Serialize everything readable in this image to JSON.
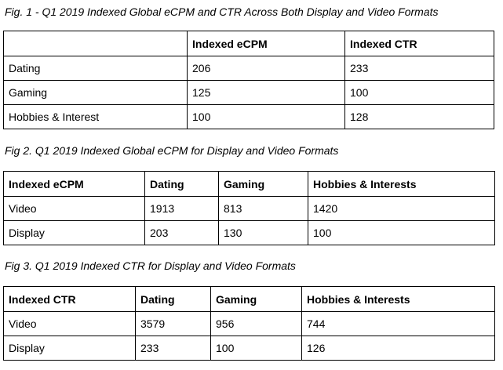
{
  "fig1": {
    "caption": "Fig. 1 - Q1 2019 Indexed Global eCPM and CTR Across Both Display and Video Formats",
    "headers": [
      "",
      "Indexed eCPM",
      "Indexed CTR"
    ],
    "rows": [
      [
        "Dating",
        "206",
        "233"
      ],
      [
        "Gaming",
        "125",
        "100"
      ],
      [
        "Hobbies & Interest",
        "100",
        "128"
      ]
    ]
  },
  "fig2": {
    "caption": "Fig 2. Q1 2019 Indexed Global eCPM for Display and Video Formats",
    "headers": [
      "Indexed eCPM",
      "Dating",
      "Gaming",
      "Hobbies & Interests"
    ],
    "rows": [
      [
        "Video",
        "1913",
        "813",
        "1420"
      ],
      [
        "Display",
        "203",
        "130",
        "100"
      ]
    ]
  },
  "fig3": {
    "caption": "Fig 3. Q1 2019 Indexed CTR for Display and Video Formats",
    "headers": [
      "Indexed CTR",
      "Dating",
      "Gaming",
      "Hobbies & Interests"
    ],
    "rows": [
      [
        "Video",
        "3579",
        "956",
        "744"
      ],
      [
        "Display",
        "233",
        "100",
        "126"
      ]
    ]
  }
}
